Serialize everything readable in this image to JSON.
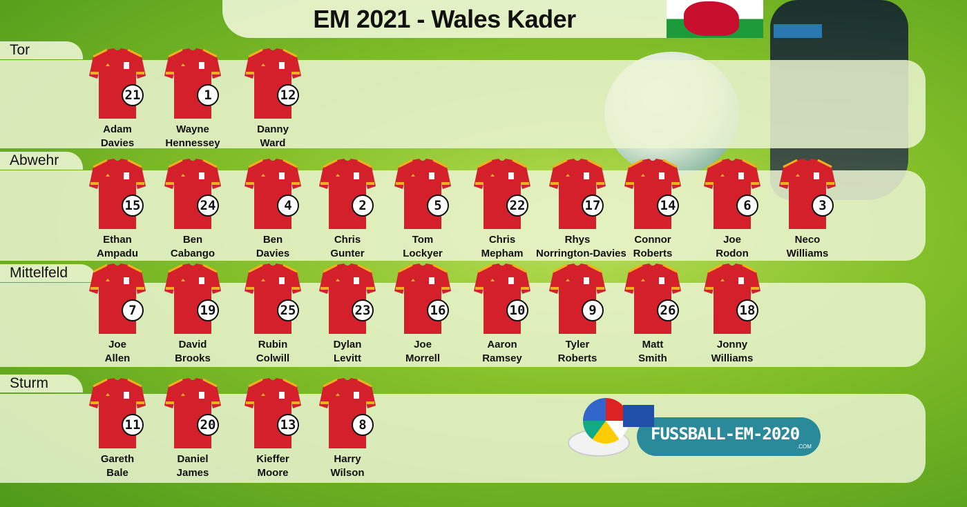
{
  "title": "EM 2021 - Wales Kader",
  "colors": {
    "shirt": "#d4202a",
    "panel": "#ebf5d2",
    "logo": "#2a8a9a"
  },
  "sections": [
    {
      "label": "Tor",
      "players": [
        {
          "first": "Adam",
          "last": "Davies",
          "number": "21"
        },
        {
          "first": "Wayne",
          "last": "Hennessey",
          "number": "1"
        },
        {
          "first": "Danny",
          "last": "Ward",
          "number": "12"
        }
      ]
    },
    {
      "label": "Abwehr",
      "players": [
        {
          "first": "Ethan",
          "last": "Ampadu",
          "number": "15"
        },
        {
          "first": "Ben",
          "last": "Cabango",
          "number": "24"
        },
        {
          "first": "Ben",
          "last": "Davies",
          "number": "4"
        },
        {
          "first": "Chris",
          "last": "Gunter",
          "number": "2"
        },
        {
          "first": "Tom",
          "last": "Lockyer",
          "number": "5"
        },
        {
          "first": "Chris",
          "last": "Mepham",
          "number": "22"
        },
        {
          "first": "Rhys",
          "last": "Norrington-Davies",
          "number": "17"
        },
        {
          "first": "Connor",
          "last": "Roberts",
          "number": "14"
        },
        {
          "first": "Joe",
          "last": "Rodon",
          "number": "6"
        },
        {
          "first": "Neco",
          "last": "Williams",
          "number": "3"
        }
      ]
    },
    {
      "label": "Mittelfeld",
      "players": [
        {
          "first": "Joe",
          "last": "Allen",
          "number": "7"
        },
        {
          "first": "David",
          "last": "Brooks",
          "number": "19"
        },
        {
          "first": "Rubin",
          "last": "Colwill",
          "number": "25"
        },
        {
          "first": "Dylan",
          "last": "Levitt",
          "number": "23"
        },
        {
          "first": "Joe",
          "last": "Morrell",
          "number": "16"
        },
        {
          "first": "Aaron",
          "last": "Ramsey",
          "number": "10"
        },
        {
          "first": "Tyler",
          "last": "Roberts",
          "number": "9"
        },
        {
          "first": "Matt",
          "last": "Smith",
          "number": "26"
        },
        {
          "first": "Jonny",
          "last": "Williams",
          "number": "18"
        }
      ]
    },
    {
      "label": "Sturm",
      "players": [
        {
          "first": "Gareth",
          "last": "Bale",
          "number": "11"
        },
        {
          "first": "Daniel",
          "last": "James",
          "number": "20"
        },
        {
          "first": "Kieffer",
          "last": "Moore",
          "number": "13"
        },
        {
          "first": "Harry",
          "last": "Wilson",
          "number": "8"
        }
      ]
    }
  ],
  "logo": {
    "text": "FUSSBALL-EM-2020",
    "suffix": ".COM"
  }
}
